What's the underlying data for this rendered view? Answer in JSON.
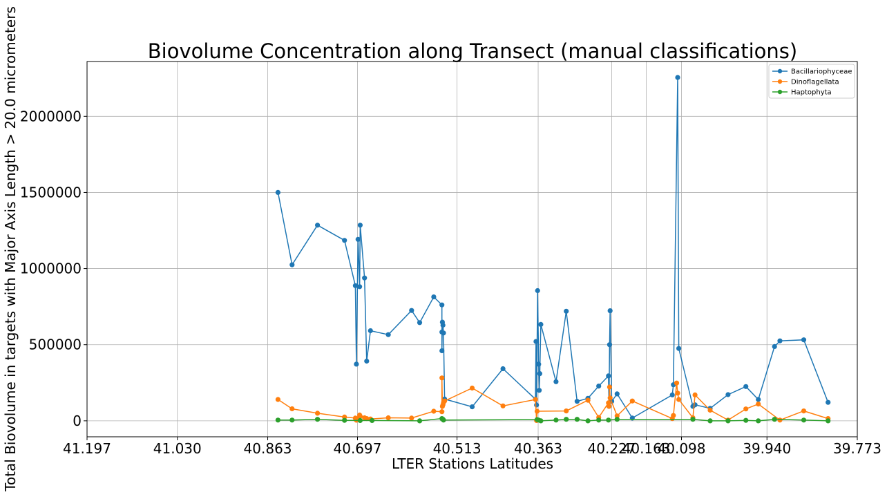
{
  "chart_data": {
    "type": "line",
    "title": "Biovolume Concentration along Transect (manual classifications)",
    "xlabel": "LTER Stations Latitudes",
    "ylabel": "Total Biovolume in targets with Major Axis Length > 20.0 micrometers",
    "xlim": [
      41.197,
      39.773
    ],
    "ylim": [
      -105000,
      2360000
    ],
    "x_ticks": [
      {
        "value": 41.197,
        "label": "41.197"
      },
      {
        "value": 41.03,
        "label": "41.030"
      },
      {
        "value": 40.863,
        "label": "40.863"
      },
      {
        "value": 40.697,
        "label": "40.697"
      },
      {
        "value": 40.513,
        "label": "40.513"
      },
      {
        "value": 40.363,
        "label": "40.363"
      },
      {
        "value": 40.227,
        "label": "40.227"
      },
      {
        "value": 40.163,
        "label": "40.163"
      },
      {
        "value": 40.098,
        "label": "40.098"
      },
      {
        "value": 39.94,
        "label": "39.940"
      },
      {
        "value": 39.773,
        "label": "39.773"
      }
    ],
    "y_ticks": [
      {
        "value": 0,
        "label": "0"
      },
      {
        "value": 500000,
        "label": "500000"
      },
      {
        "value": 1000000,
        "label": "1000000"
      },
      {
        "value": 1500000,
        "label": "1500000"
      },
      {
        "value": 2000000,
        "label": "2000000"
      }
    ],
    "grid": true,
    "legend_position": "top-right",
    "series": [
      {
        "name": "Bacillariophyceae",
        "color": "#1f77b4",
        "points": [
          [
            40.844,
            1500000
          ],
          [
            40.818,
            1025000
          ],
          [
            40.771,
            1285000
          ],
          [
            40.721,
            1185000
          ],
          [
            40.701,
            888000
          ],
          [
            40.699,
            372000
          ],
          [
            40.696,
            1192000
          ],
          [
            40.693,
            881000
          ],
          [
            40.692,
            1285000
          ],
          [
            40.684,
            938000
          ],
          [
            40.68,
            392000
          ],
          [
            40.673,
            592000
          ],
          [
            40.64,
            566000
          ],
          [
            40.597,
            725000
          ],
          [
            40.582,
            645000
          ],
          [
            40.556,
            814000
          ],
          [
            40.541,
            761000
          ],
          [
            40.541,
            583000
          ],
          [
            40.541,
            460000
          ],
          [
            40.54,
            648000
          ],
          [
            40.539,
            628000
          ],
          [
            40.538,
            577000
          ],
          [
            40.536,
            143000
          ],
          [
            40.485,
            92000
          ],
          [
            40.428,
            342000
          ],
          [
            40.368,
            142000
          ],
          [
            40.367,
            521000
          ],
          [
            40.366,
            104000
          ],
          [
            40.364,
            855000
          ],
          [
            40.362,
            372000
          ],
          [
            40.361,
            200000
          ],
          [
            40.36,
            310000
          ],
          [
            40.358,
            633000
          ],
          [
            40.33,
            257000
          ],
          [
            40.311,
            720000
          ],
          [
            40.291,
            128000
          ],
          [
            40.271,
            148000
          ],
          [
            40.251,
            228000
          ],
          [
            40.233,
            295000
          ],
          [
            40.232,
            95000
          ],
          [
            40.231,
            500000
          ],
          [
            40.23,
            723000
          ],
          [
            40.227,
            128000
          ],
          [
            40.217,
            177000
          ],
          [
            40.189,
            18000
          ],
          [
            40.115,
            170000
          ],
          [
            40.113,
            237000
          ],
          [
            40.105,
            2255000
          ],
          [
            40.103,
            475000
          ],
          [
            40.077,
            95000
          ],
          [
            40.073,
            105000
          ],
          [
            40.045,
            82000
          ],
          [
            40.012,
            172000
          ],
          [
            39.979,
            225000
          ],
          [
            39.956,
            140000
          ],
          [
            39.926,
            488000
          ],
          [
            39.916,
            525000
          ],
          [
            39.872,
            532000
          ],
          [
            39.827,
            121000
          ]
        ]
      },
      {
        "name": "Dinoflagellata",
        "color": "#ff7f0e",
        "points": [
          [
            40.844,
            140000
          ],
          [
            40.818,
            79000
          ],
          [
            40.771,
            50000
          ],
          [
            40.721,
            25000
          ],
          [
            40.701,
            18000
          ],
          [
            40.699,
            4000
          ],
          [
            40.696,
            15000
          ],
          [
            40.693,
            38000
          ],
          [
            40.692,
            30000
          ],
          [
            40.684,
            20000
          ],
          [
            40.68,
            15000
          ],
          [
            40.673,
            12000
          ],
          [
            40.64,
            20000
          ],
          [
            40.597,
            18000
          ],
          [
            40.556,
            63000
          ],
          [
            40.541,
            60000
          ],
          [
            40.541,
            282000
          ],
          [
            40.54,
            95000
          ],
          [
            40.539,
            105000
          ],
          [
            40.538,
            120000
          ],
          [
            40.536,
            130000
          ],
          [
            40.485,
            215000
          ],
          [
            40.428,
            98000
          ],
          [
            40.368,
            140000
          ],
          [
            40.366,
            2000
          ],
          [
            40.365,
            63000
          ],
          [
            40.311,
            65000
          ],
          [
            40.271,
            135000
          ],
          [
            40.251,
            22000
          ],
          [
            40.233,
            118000
          ],
          [
            40.232,
            95000
          ],
          [
            40.231,
            222000
          ],
          [
            40.23,
            150000
          ],
          [
            40.217,
            32000
          ],
          [
            40.189,
            130000
          ],
          [
            40.115,
            15000
          ],
          [
            40.113,
            35000
          ],
          [
            40.107,
            248000
          ],
          [
            40.105,
            182000
          ],
          [
            40.103,
            140000
          ],
          [
            40.077,
            20000
          ],
          [
            40.073,
            170000
          ],
          [
            40.045,
            70000
          ],
          [
            40.012,
            5000
          ],
          [
            39.979,
            78000
          ],
          [
            39.956,
            110000
          ],
          [
            39.916,
            5000
          ],
          [
            39.872,
            65000
          ],
          [
            39.827,
            15000
          ]
        ]
      },
      {
        "name": "Haptophyta",
        "color": "#2ca02c",
        "points": [
          [
            40.844,
            5000
          ],
          [
            40.818,
            5000
          ],
          [
            40.771,
            10000
          ],
          [
            40.721,
            3000
          ],
          [
            40.692,
            2000
          ],
          [
            40.67,
            2000
          ],
          [
            40.582,
            0
          ],
          [
            40.541,
            15000
          ],
          [
            40.539,
            10000
          ],
          [
            40.538,
            5000
          ],
          [
            40.365,
            8000
          ],
          [
            40.362,
            5000
          ],
          [
            40.358,
            0
          ],
          [
            40.33,
            5000
          ],
          [
            40.311,
            10000
          ],
          [
            40.291,
            10000
          ],
          [
            40.271,
            0
          ],
          [
            40.251,
            5000
          ],
          [
            40.233,
            5000
          ],
          [
            40.217,
            10000
          ],
          [
            40.077,
            10000
          ],
          [
            40.045,
            0
          ],
          [
            40.012,
            0
          ],
          [
            39.979,
            3000
          ],
          [
            39.956,
            0
          ],
          [
            39.926,
            10000
          ],
          [
            39.872,
            5000
          ],
          [
            39.827,
            0
          ]
        ]
      }
    ]
  }
}
